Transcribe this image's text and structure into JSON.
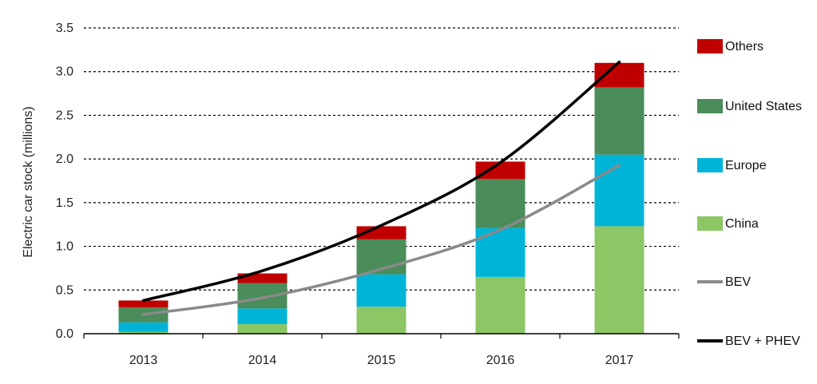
{
  "chart_data": {
    "type": "bar",
    "stacked": true,
    "categories": [
      "2013",
      "2014",
      "2015",
      "2016",
      "2017"
    ],
    "series": [
      {
        "name": "China",
        "kind": "bar",
        "color": "#8cc665",
        "values": [
          0.02,
          0.11,
          0.31,
          0.65,
          1.23
        ]
      },
      {
        "name": "Europe",
        "kind": "bar",
        "color": "#00b4d8",
        "values": [
          0.11,
          0.18,
          0.37,
          0.56,
          0.82
        ]
      },
      {
        "name": "United States",
        "kind": "bar",
        "color": "#4a8c5a",
        "values": [
          0.17,
          0.29,
          0.4,
          0.56,
          0.77
        ]
      },
      {
        "name": "Others",
        "kind": "bar",
        "color": "#c00000",
        "values": [
          0.08,
          0.11,
          0.15,
          0.2,
          0.28
        ]
      },
      {
        "name": "BEV",
        "kind": "line",
        "color": "#8a8a8a",
        "values": [
          0.22,
          0.41,
          0.74,
          1.19,
          1.93
        ]
      },
      {
        "name": "BEV + PHEV",
        "kind": "line",
        "color": "#000000",
        "values": [
          0.38,
          0.72,
          1.24,
          1.96,
          3.11
        ]
      }
    ],
    "ylabel": "Electric car stock (millions)",
    "xlabel": "",
    "ylim": [
      0,
      3.5
    ],
    "yticks": [
      "0.0",
      "0.5",
      "1.0",
      "1.5",
      "2.0",
      "2.5",
      "3.0",
      "3.5"
    ],
    "grid": true,
    "legend_position": "right",
    "legend_order": [
      "Others",
      "United States",
      "Europe",
      "China",
      "BEV",
      "BEV + PHEV"
    ]
  }
}
